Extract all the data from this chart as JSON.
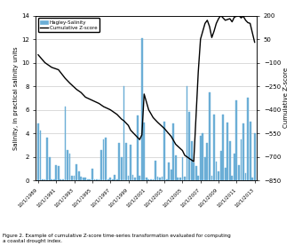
{
  "title": "",
  "caption": "Figure 2. Example of cumulative Z-score time-series transformation evaluated for computing\na coastal drought index.",
  "ylabel_left": "Salinity, in practical salinity units",
  "ylabel_right": "Cumulative Z-score",
  "ylim_left": [
    0,
    14.0
  ],
  "ylim_right": [
    -850,
    200
  ],
  "yticks_left": [
    0.0,
    2.0,
    4.0,
    6.0,
    8.0,
    10.0,
    12.0,
    14.0
  ],
  "yticks_right": [
    -850,
    -700,
    -550,
    -400,
    -250,
    -100,
    50,
    200
  ],
  "x_start_year": 1989,
  "x_end_year": 2014,
  "xtick_years": [
    1989,
    1991,
    1993,
    1995,
    1997,
    1999,
    2001,
    2003,
    2005,
    2007,
    2009,
    2011,
    2013
  ],
  "bar_color": "#6baed6",
  "bar_edge_color": "#6baed6",
  "line_color": "#000000",
  "legend_bar_label": "Hagley-Salinity",
  "legend_line_label": "Cumulative Z-score",
  "background_color": "#ffffff",
  "grid_color": "#cccccc",
  "salinity_data": {
    "years": [
      1989.75,
      1990.0,
      1990.25,
      1990.5,
      1990.75,
      1991.0,
      1991.25,
      1991.5,
      1991.75,
      1992.0,
      1992.25,
      1992.5,
      1992.75,
      1993.0,
      1993.25,
      1993.5,
      1993.75,
      1994.0,
      1994.25,
      1994.5,
      1994.75,
      1995.0,
      1995.25,
      1995.5,
      1995.75,
      1996.0,
      1996.25,
      1996.5,
      1996.75,
      1997.0,
      1997.25,
      1997.5,
      1997.75,
      1998.0,
      1998.25,
      1998.5,
      1998.75,
      1999.0,
      1999.25,
      1999.5,
      1999.75,
      2000.0,
      2000.25,
      2000.5,
      2000.75,
      2001.0,
      2001.25,
      2001.5,
      2001.75,
      2002.0,
      2002.25,
      2002.5,
      2002.75,
      2003.0,
      2003.25,
      2003.5,
      2003.75,
      2004.0,
      2004.25,
      2004.5,
      2004.75,
      2005.0,
      2005.25,
      2005.5,
      2005.75,
      2006.0,
      2006.25,
      2006.5,
      2006.75,
      2007.0,
      2007.25,
      2007.5,
      2007.75,
      2008.0,
      2008.25,
      2008.5,
      2008.75,
      2009.0,
      2009.25,
      2009.5,
      2009.75,
      2010.0,
      2010.25,
      2010.5,
      2010.75,
      2011.0,
      2011.25,
      2011.5,
      2011.75,
      2012.0,
      2012.25,
      2012.5,
      2012.75,
      2013.0,
      2013.25,
      2013.5,
      2013.75
    ],
    "values": [
      4.8,
      4.2,
      0.1,
      0.1,
      3.6,
      2.0,
      0.1,
      0.1,
      1.3,
      1.2,
      0.1,
      0.1,
      6.3,
      2.6,
      2.3,
      0.4,
      0.4,
      1.4,
      0.8,
      0.3,
      0.2,
      0.2,
      0.1,
      0.1,
      1.0,
      0.1,
      0.1,
      0.1,
      2.6,
      3.5,
      3.6,
      0.1,
      0.2,
      0.1,
      0.5,
      0.1,
      3.2,
      2.0,
      8.0,
      3.2,
      0.4,
      3.0,
      0.5,
      0.2,
      5.5,
      0.4,
      12.1,
      4.9,
      0.2,
      0.1,
      0.05,
      0.05,
      1.7,
      0.3,
      0.2,
      0.3,
      5.0,
      0.05,
      1.5,
      0.9,
      4.8,
      2.1,
      0.2,
      0.2,
      2.0,
      0.3,
      8.0,
      5.8,
      3.3,
      1.5,
      1.2,
      0.4,
      3.8,
      4.0,
      2.0,
      3.2,
      7.5,
      0.4,
      5.6,
      1.6,
      0.8,
      2.5,
      5.6,
      1.1,
      4.9,
      3.3,
      0.4,
      2.3,
      6.8,
      1.3,
      3.5,
      4.8,
      0.6,
      7.0,
      5.0,
      0.2,
      4.0
    ]
  },
  "zscore_data": {
    "years": [
      1989.75,
      1990.5,
      1991.25,
      1992.0,
      1992.75,
      1993.25,
      1994.0,
      1994.5,
      1995.0,
      1995.75,
      1996.5,
      1997.0,
      1997.75,
      1998.5,
      1999.0,
      1999.25,
      1999.75,
      2000.0,
      2000.5,
      2001.0,
      2001.25,
      2001.5,
      2001.75,
      2002.0,
      2002.5,
      2003.0,
      2003.75,
      2004.5,
      2005.0,
      2005.75,
      2006.0,
      2006.25,
      2006.5,
      2007.0,
      2007.5,
      2007.75,
      2008.0,
      2008.25,
      2008.5,
      2008.75,
      2009.0,
      2009.25,
      2009.5,
      2009.75,
      2010.0,
      2010.5,
      2011.0,
      2011.25,
      2011.5,
      2011.75,
      2012.0,
      2012.25,
      2012.5,
      2012.75,
      2013.0,
      2013.25,
      2013.75
    ],
    "values": [
      -50,
      -100,
      -130,
      -145,
      -200,
      -230,
      -270,
      -290,
      -320,
      -340,
      -360,
      -380,
      -400,
      -430,
      -460,
      -470,
      -500,
      -530,
      -560,
      -590,
      -560,
      -300,
      -350,
      -400,
      -450,
      -480,
      -520,
      -570,
      -620,
      -660,
      -690,
      -700,
      -710,
      -730,
      -160,
      50,
      100,
      150,
      170,
      130,
      60,
      100,
      150,
      180,
      200,
      170,
      180,
      160,
      190,
      195,
      200,
      185,
      195,
      170,
      155,
      150,
      30
    ]
  }
}
